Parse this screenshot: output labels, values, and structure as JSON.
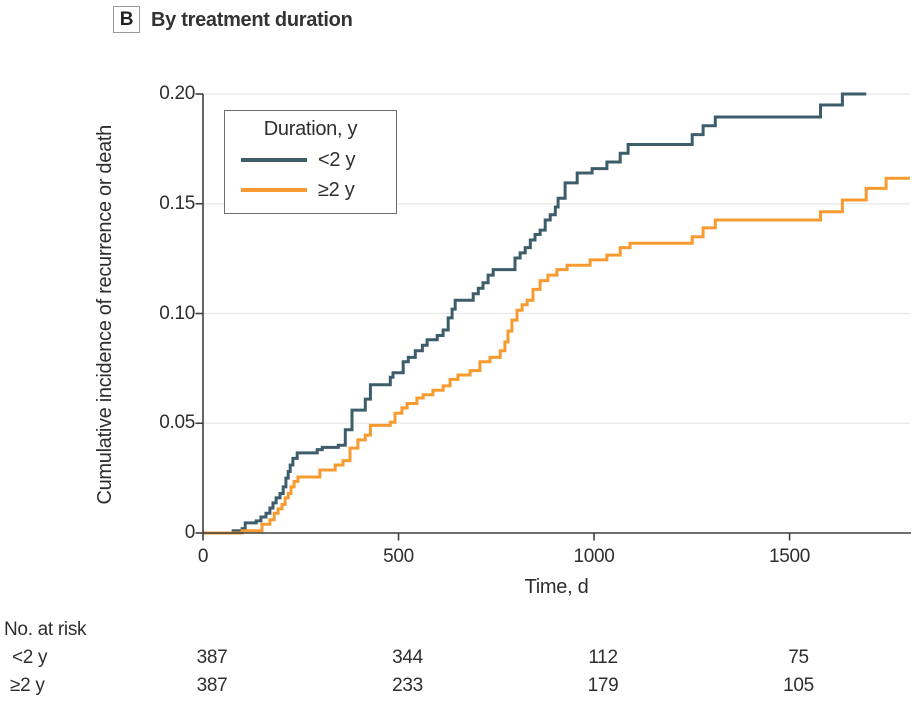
{
  "panel": {
    "tag": "B",
    "title": "By treatment duration"
  },
  "legend": {
    "title": "Duration, y",
    "entries": [
      {
        "label": "<2 y",
        "color": "#3D5D6B"
      },
      {
        "label": "≥2 y",
        "color": "#F79B30"
      }
    ]
  },
  "chart_data": {
    "type": "line",
    "subtype": "step-cumulative-incidence",
    "title": "By treatment duration",
    "xlabel": "Time, d",
    "ylabel": "Cumulative incidence of recurrence or death",
    "xlim": [
      0,
      1808
    ],
    "ylim": [
      0,
      0.2
    ],
    "xticks": [
      0,
      500,
      1000,
      1500
    ],
    "yticks": [
      0,
      0.05,
      0.1,
      0.15,
      0.2
    ],
    "ytick_labels": [
      "0",
      "0.05",
      "0.10",
      "0.15",
      "0.20"
    ],
    "grid": "horizontal-light",
    "legend_position": "upper-left-inside",
    "series": [
      {
        "name": "<2 y",
        "color": "#3D5D6B",
        "step": true,
        "points": [
          [
            0,
            0
          ],
          [
            77,
            0.001
          ],
          [
            100,
            0.002
          ],
          [
            108,
            0.0046
          ],
          [
            136,
            0.0055
          ],
          [
            148,
            0.0073
          ],
          [
            161,
            0.009
          ],
          [
            171,
            0.0114
          ],
          [
            179,
            0.0137
          ],
          [
            187,
            0.016
          ],
          [
            197,
            0.018
          ],
          [
            205,
            0.021
          ],
          [
            212,
            0.025
          ],
          [
            218,
            0.028
          ],
          [
            223,
            0.031
          ],
          [
            230,
            0.034
          ],
          [
            241,
            0.0365
          ],
          [
            292,
            0.038
          ],
          [
            305,
            0.039
          ],
          [
            346,
            0.04
          ],
          [
            364,
            0.047
          ],
          [
            381,
            0.056
          ],
          [
            415,
            0.061
          ],
          [
            428,
            0.0675
          ],
          [
            479,
            0.071
          ],
          [
            486,
            0.073
          ],
          [
            512,
            0.078
          ],
          [
            525,
            0.08
          ],
          [
            543,
            0.083
          ],
          [
            561,
            0.0855
          ],
          [
            573,
            0.088
          ],
          [
            599,
            0.09
          ],
          [
            614,
            0.0925
          ],
          [
            627,
            0.098
          ],
          [
            637,
            0.102
          ],
          [
            645,
            0.106
          ],
          [
            691,
            0.109
          ],
          [
            704,
            0.1115
          ],
          [
            716,
            0.114
          ],
          [
            729,
            0.1175
          ],
          [
            742,
            0.12
          ],
          [
            798,
            0.1253
          ],
          [
            811,
            0.1276
          ],
          [
            824,
            0.13
          ],
          [
            837,
            0.1335
          ],
          [
            849,
            0.136
          ],
          [
            862,
            0.138
          ],
          [
            875,
            0.1426
          ],
          [
            888,
            0.145
          ],
          [
            901,
            0.1485
          ],
          [
            908,
            0.1525
          ],
          [
            926,
            0.1595
          ],
          [
            957,
            0.164
          ],
          [
            995,
            0.166
          ],
          [
            1033,
            0.169
          ],
          [
            1067,
            0.173
          ],
          [
            1087,
            0.177
          ],
          [
            1251,
            0.1815
          ],
          [
            1279,
            0.1855
          ],
          [
            1310,
            0.1895
          ],
          [
            1579,
            0.195
          ],
          [
            1635,
            0.2
          ],
          [
            1696,
            0.2
          ]
        ]
      },
      {
        "name": "≥2 y",
        "color": "#F79B30",
        "step": true,
        "points": [
          [
            0,
            0
          ],
          [
            100,
            0.001
          ],
          [
            151,
            0.004
          ],
          [
            171,
            0.006
          ],
          [
            182,
            0.009
          ],
          [
            192,
            0.011
          ],
          [
            202,
            0.013
          ],
          [
            210,
            0.016
          ],
          [
            218,
            0.018
          ],
          [
            225,
            0.021
          ],
          [
            233,
            0.0235
          ],
          [
            243,
            0.0255
          ],
          [
            299,
            0.0287
          ],
          [
            338,
            0.031
          ],
          [
            358,
            0.033
          ],
          [
            376,
            0.0387
          ],
          [
            396,
            0.0424
          ],
          [
            415,
            0.0446
          ],
          [
            428,
            0.049
          ],
          [
            479,
            0.0505
          ],
          [
            491,
            0.0546
          ],
          [
            509,
            0.057
          ],
          [
            522,
            0.059
          ],
          [
            547,
            0.0615
          ],
          [
            563,
            0.063
          ],
          [
            588,
            0.065
          ],
          [
            614,
            0.067
          ],
          [
            632,
            0.07
          ],
          [
            652,
            0.072
          ],
          [
            683,
            0.074
          ],
          [
            708,
            0.078
          ],
          [
            734,
            0.08
          ],
          [
            760,
            0.083
          ],
          [
            772,
            0.087
          ],
          [
            780,
            0.092
          ],
          [
            790,
            0.097
          ],
          [
            803,
            0.1015
          ],
          [
            816,
            0.104
          ],
          [
            829,
            0.106
          ],
          [
            844,
            0.111
          ],
          [
            862,
            0.115
          ],
          [
            882,
            0.1175
          ],
          [
            905,
            0.12
          ],
          [
            931,
            0.122
          ],
          [
            990,
            0.1244
          ],
          [
            1033,
            0.1266
          ],
          [
            1067,
            0.13
          ],
          [
            1092,
            0.132
          ],
          [
            1251,
            0.135
          ],
          [
            1279,
            0.139
          ],
          [
            1310,
            0.1426
          ],
          [
            1579,
            0.1464
          ],
          [
            1635,
            0.1517
          ],
          [
            1696,
            0.157
          ],
          [
            1747,
            0.1616
          ],
          [
            1808,
            0.1616
          ]
        ]
      }
    ]
  },
  "risk_table": {
    "title": "No. at risk",
    "time_points": [
      0,
      500,
      1000,
      1500
    ],
    "rows": [
      {
        "label": "<2 y",
        "values": [
          "387",
          "344",
          "112",
          "75"
        ]
      },
      {
        "label": "≥2 y",
        "values": [
          "387",
          "233",
          "179",
          "105"
        ]
      }
    ]
  },
  "colors": {
    "axis": "#3f3f3f",
    "grid": "#e8e8e8",
    "text": "#2e2e2e"
  }
}
